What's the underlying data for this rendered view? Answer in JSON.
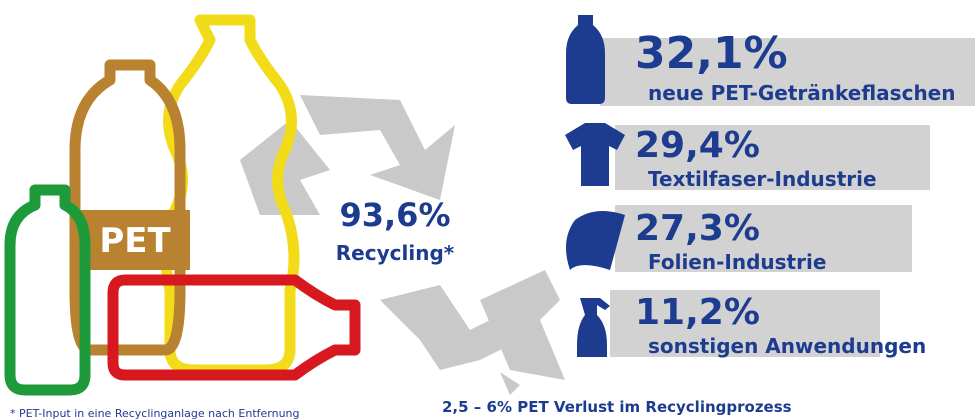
{
  "bottle_label": "PET",
  "center": {
    "value": "93,6%",
    "label": "Recycling*"
  },
  "items": [
    {
      "value": "32,1%",
      "label": "neue PET-Getränkeflaschen"
    },
    {
      "value": "29,4%",
      "label": "Textilfaser-Industrie"
    },
    {
      "value": "27,3%",
      "label": "Folien-Industrie"
    },
    {
      "value": "11,2%",
      "label": "sonstigen Anwendungen"
    }
  ],
  "loss": "2,5 – 6% PET Verlust im Recyclingprozess",
  "footnote": "* PET-Input in eine Recyclinganlage nach Entfernung"
}
